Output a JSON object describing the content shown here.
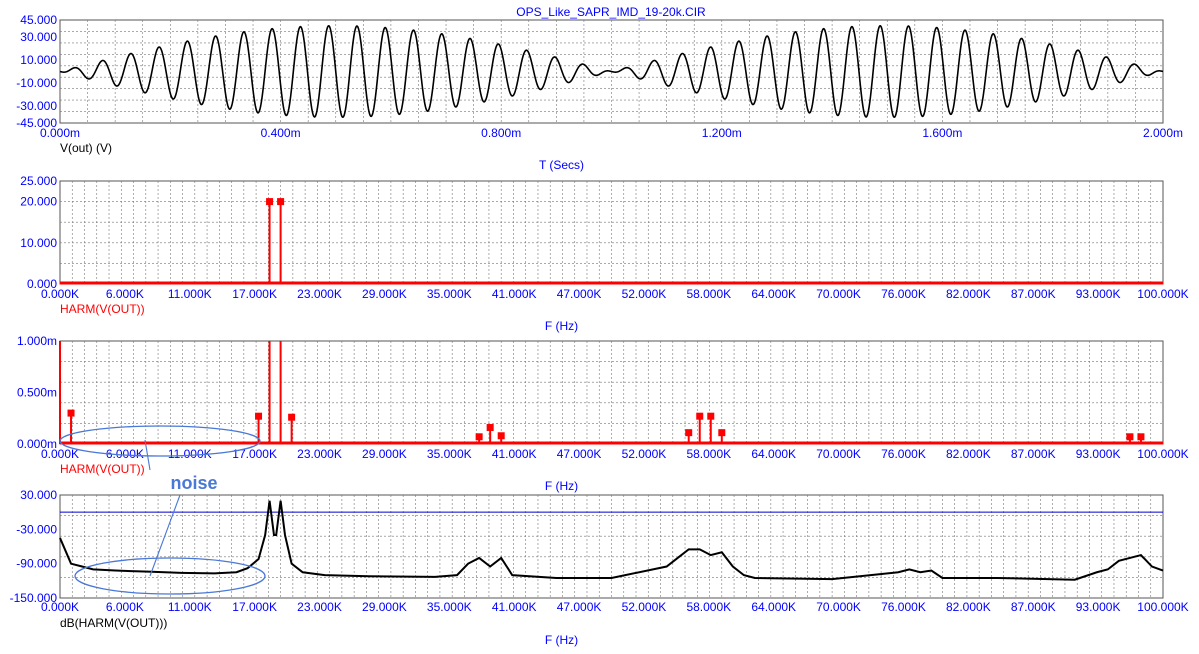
{
  "title": "OPS_Like_SAPR_IMD_19-20k.CIR",
  "colors": {
    "axis_text": "#0000ff",
    "trace_red": "#ff0000",
    "trace_black": "#000000",
    "grid": "#777777",
    "annotation": "#4a78d6",
    "ref_line": "#0000cc"
  },
  "annotation": {
    "text": "noise"
  },
  "chart_data": [
    {
      "type": "line",
      "trace_label": "V(out) (V)",
      "xlabel": "T (Secs)",
      "yticks": [
        "45.000",
        "30.000",
        "10.000",
        "-10.000",
        "-30.000",
        "-45.000"
      ],
      "ytick_values": [
        45,
        30,
        10,
        -10,
        -30,
        -45
      ],
      "ylim": [
        -45,
        45
      ],
      "xticks": [
        "0.000m",
        "0.400m",
        "0.800m",
        "1.200m",
        "1.600m",
        "2.000m"
      ],
      "xlim": [
        0,
        2.0
      ],
      "x_unit": "ms",
      "grid": true,
      "series": [
        {
          "tones_hz": [
            19000,
            20000
          ],
          "amplitude_each_v": 20
        }
      ]
    },
    {
      "type": "bar",
      "trace_label": "HARM(V(OUT))",
      "xlabel": "F (Hz)",
      "yticks": [
        "25.000",
        "20.000",
        "10.000",
        "0.000"
      ],
      "ytick_values": [
        25,
        20,
        10,
        0
      ],
      "ylim": [
        0,
        25
      ],
      "xticks": [
        "0.000K",
        "6.000K",
        "11.000K",
        "17.000K",
        "23.000K",
        "29.000K",
        "35.000K",
        "41.000K",
        "47.000K",
        "52.000K",
        "58.000K",
        "64.000K",
        "70.000K",
        "76.000K",
        "82.000K",
        "87.000K",
        "93.000K",
        "100.000K"
      ],
      "xlim": [
        0,
        100
      ],
      "x_unit": "kHz",
      "grid": true,
      "points": [
        {
          "x": 19,
          "y": 20
        },
        {
          "x": 20,
          "y": 20
        }
      ]
    },
    {
      "type": "bar",
      "trace_label": "HARM(V(OUT))",
      "xlabel": "F (Hz)",
      "yticks": [
        "1.000m",
        "0.500m",
        "0.000m"
      ],
      "ytick_values": [
        1.0,
        0.5,
        0
      ],
      "ylim": [
        0,
        1.0
      ],
      "y_unit": "mV",
      "xticks": [
        "0.000K",
        "6.000K",
        "11.000K",
        "17.000K",
        "23.000K",
        "29.000K",
        "35.000K",
        "41.000K",
        "47.000K",
        "52.000K",
        "58.000K",
        "64.000K",
        "70.000K",
        "76.000K",
        "82.000K",
        "87.000K",
        "93.000K",
        "100.000K"
      ],
      "xlim": [
        0,
        100
      ],
      "x_unit": "kHz",
      "grid": true,
      "points": [
        {
          "x": 0,
          "y": 1.0
        },
        {
          "x": 1,
          "y": 0.3
        },
        {
          "x": 18,
          "y": 0.27
        },
        {
          "x": 19,
          "y": 1.0
        },
        {
          "x": 20,
          "y": 1.0
        },
        {
          "x": 21,
          "y": 0.26
        },
        {
          "x": 38,
          "y": 0.07
        },
        {
          "x": 39,
          "y": 0.16
        },
        {
          "x": 40,
          "y": 0.08
        },
        {
          "x": 57,
          "y": 0.11
        },
        {
          "x": 58,
          "y": 0.27
        },
        {
          "x": 59,
          "y": 0.27
        },
        {
          "x": 60,
          "y": 0.11
        },
        {
          "x": 97,
          "y": 0.07
        },
        {
          "x": 98,
          "y": 0.07
        }
      ]
    },
    {
      "type": "line",
      "trace_label": "dB(HARM(V(OUT)))",
      "xlabel": "F (Hz)",
      "yticks": [
        "30.000",
        "-30.000",
        "-90.000",
        "-150.000"
      ],
      "ytick_values": [
        30,
        -30,
        -90,
        -150
      ],
      "ylim": [
        -150,
        30
      ],
      "xticks": [
        "0.000K",
        "6.000K",
        "11.000K",
        "17.000K",
        "23.000K",
        "29.000K",
        "35.000K",
        "41.000K",
        "47.000K",
        "52.000K",
        "58.000K",
        "64.000K",
        "70.000K",
        "76.000K",
        "82.000K",
        "87.000K",
        "93.000K",
        "100.000K"
      ],
      "xlim": [
        0,
        100
      ],
      "x_unit": "kHz",
      "grid": true,
      "ref_line_y": 0,
      "series": [
        {
          "x": [
            0,
            1,
            2,
            3,
            5,
            8,
            11,
            14,
            16,
            17,
            18,
            18.6,
            19,
            19.4,
            19.6,
            20,
            20.4,
            21,
            22,
            24,
            28,
            34,
            36,
            37,
            38,
            39,
            40,
            41,
            45,
            50,
            55,
            56,
            57,
            58,
            59,
            60,
            61,
            62,
            63,
            70,
            76,
            77,
            78,
            79,
            80,
            85,
            92,
            94,
            95,
            96,
            97,
            98,
            99,
            100
          ],
          "y": [
            -45,
            -90,
            -95,
            -100,
            -102,
            -104,
            -106,
            -107,
            -105,
            -98,
            -82,
            -40,
            20,
            -40,
            -40,
            20,
            -40,
            -90,
            -105,
            -110,
            -112,
            -113,
            -110,
            -90,
            -80,
            -95,
            -80,
            -110,
            -115,
            -115,
            -95,
            -80,
            -65,
            -65,
            -75,
            -70,
            -95,
            -110,
            -115,
            -117,
            -105,
            -100,
            -105,
            -102,
            -115,
            -115,
            -118,
            -105,
            -100,
            -85,
            -80,
            -75,
            -95,
            -102
          ]
        }
      ]
    }
  ]
}
